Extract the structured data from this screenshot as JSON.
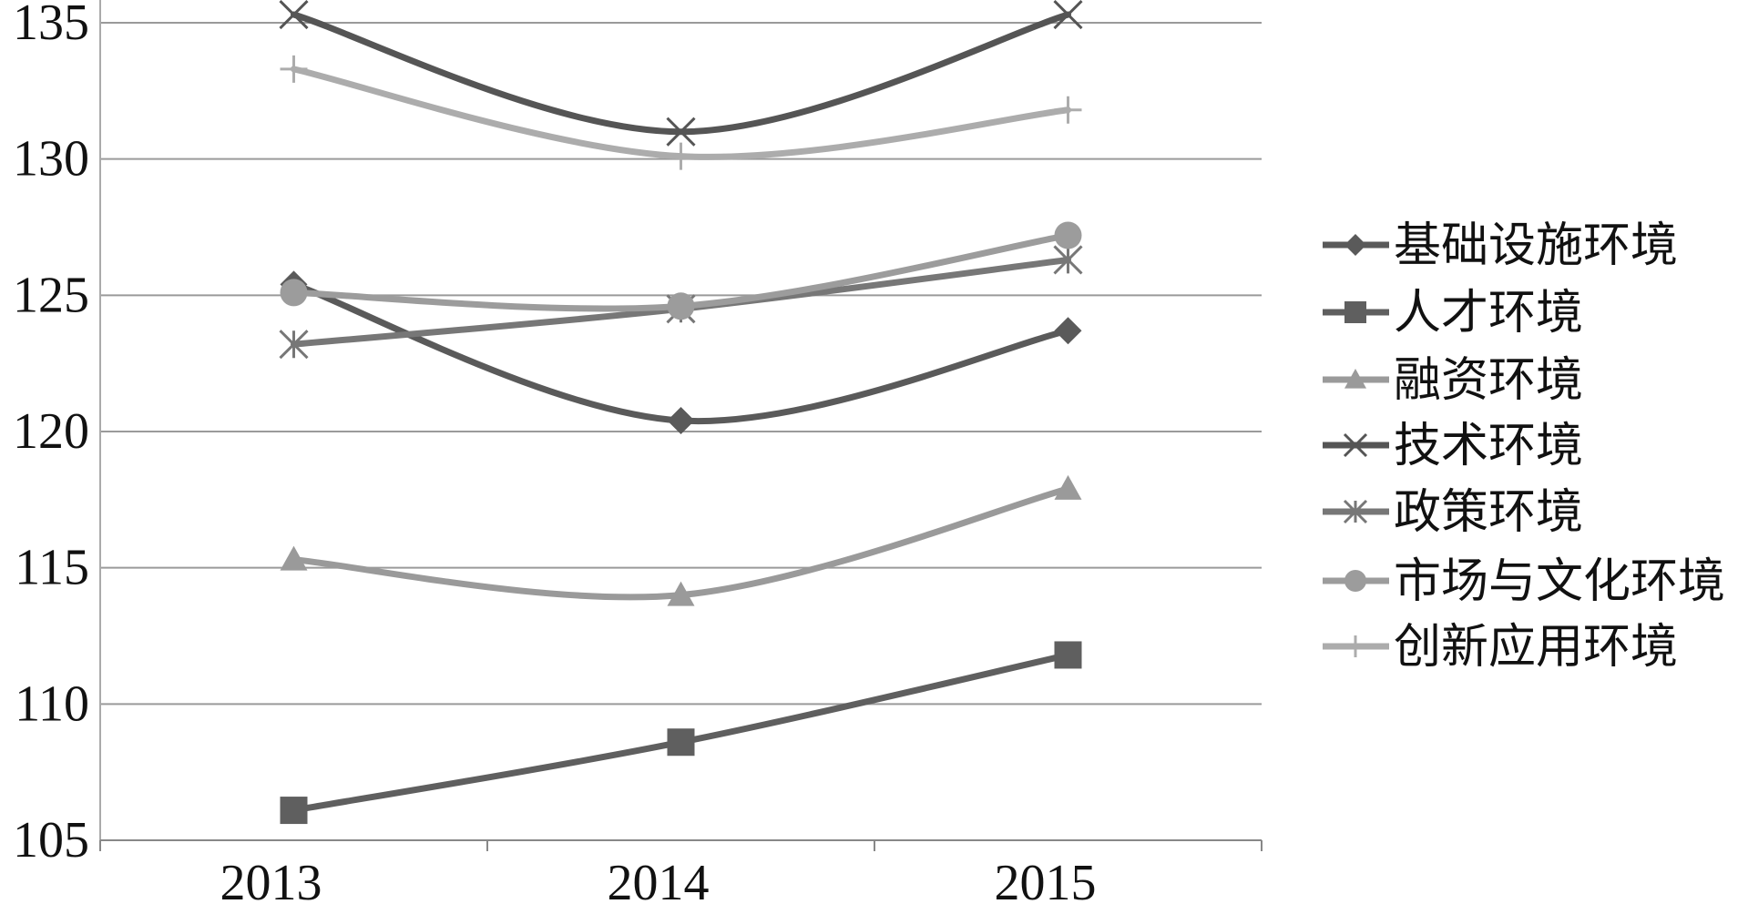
{
  "chart_data": {
    "type": "line",
    "title": "",
    "xlabel": "",
    "ylabel": "",
    "categories": [
      "2013",
      "2014",
      "2015"
    ],
    "ylim": [
      105,
      135
    ],
    "yticks": [
      105,
      110,
      115,
      120,
      125,
      130,
      135
    ],
    "grid": true,
    "smooth": true,
    "legend_position": "right",
    "series": [
      {
        "name": "基础设施环境",
        "values": [
          125.4,
          120.4,
          123.7
        ],
        "color": "#5a5a5a",
        "marker": "diamond"
      },
      {
        "name": "人才环境",
        "values": [
          106.1,
          108.6,
          111.8
        ],
        "color": "#5f5f5f",
        "marker": "square"
      },
      {
        "name": "融资环境",
        "values": [
          115.3,
          114.0,
          117.9
        ],
        "color": "#9a9a9a",
        "marker": "triangle"
      },
      {
        "name": "技术环境",
        "values": [
          135.3,
          131.0,
          135.3
        ],
        "color": "#555555",
        "marker": "x"
      },
      {
        "name": "政策环境",
        "values": [
          123.2,
          124.5,
          126.3
        ],
        "color": "#777777",
        "marker": "asterisk"
      },
      {
        "name": "市场与文化环境",
        "values": [
          125.1,
          124.6,
          127.2
        ],
        "color": "#9c9c9c",
        "marker": "circle"
      },
      {
        "name": "创新应用环境",
        "values": [
          133.3,
          130.1,
          131.8
        ],
        "color": "#acacac",
        "marker": "plus"
      }
    ]
  }
}
